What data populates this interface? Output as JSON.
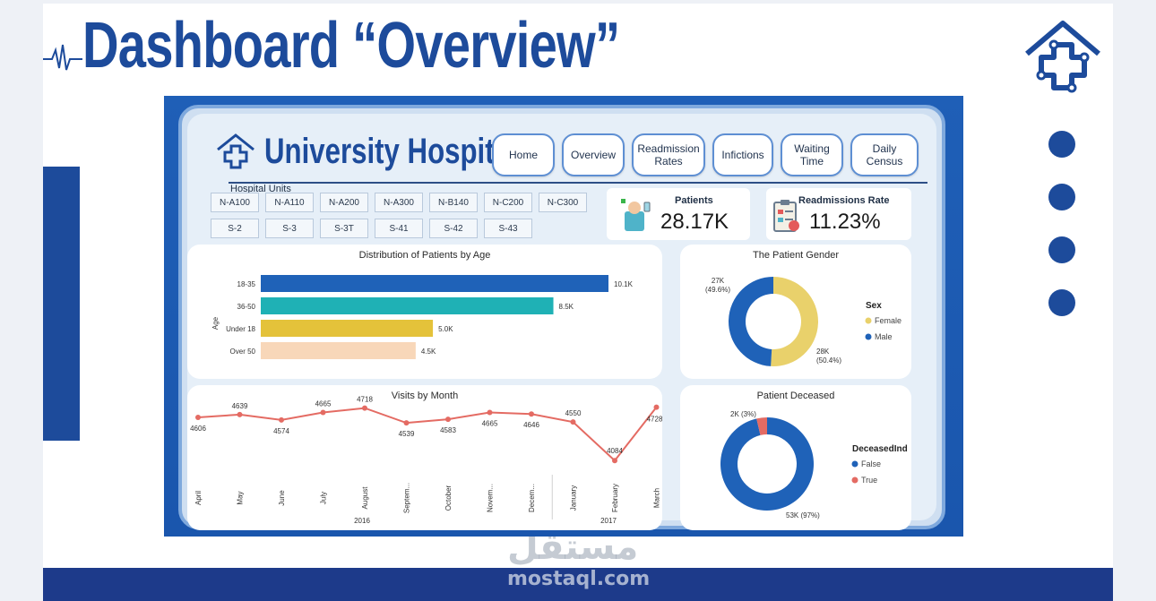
{
  "slide": {
    "title": "Dashboard “Overview”",
    "colors": {
      "primary": "#1d4b9b",
      "band": "#1d3a8a"
    },
    "watermark_ar": "مستقل",
    "watermark_en": "mostaql.com"
  },
  "dashboard": {
    "title": "University Hospital",
    "nav": [
      "Home",
      "Overview",
      "Readmission\nRates",
      "Infictions",
      "Waiting\nTime",
      "Daily\nCensus"
    ],
    "units_label": "Hospital Units",
    "units_row1": [
      "N-A100",
      "N-A110",
      "N-A200",
      "N-A300",
      "N-B140",
      "N-C200",
      "N-C300"
    ],
    "units_row2": [
      "S-2",
      "S-3",
      "S-3T",
      "S-41",
      "S-42",
      "S-43"
    ],
    "kpis": [
      {
        "label": "Patients",
        "value": "28.17K",
        "icon": "patient-icon"
      },
      {
        "label": "Readmissions Rate",
        "value": "11.23%",
        "icon": "clipboard-icon"
      }
    ]
  },
  "chart_data": [
    {
      "type": "bar",
      "title": "Distribution of Patients by Age",
      "ylabel": "Age",
      "categories": [
        "18-35",
        "36-50",
        "Under 18",
        "Over 50"
      ],
      "values": [
        10.1,
        8.5,
        5.0,
        4.5
      ],
      "value_labels": [
        "10.1K",
        "8.5K",
        "5.0K",
        "4.5K"
      ],
      "colors": [
        "#1f62b8",
        "#1fb1b5",
        "#e4c23a",
        "#f8d7b9"
      ],
      "xlim": [
        0,
        10.1
      ]
    },
    {
      "type": "pie",
      "title": "The Patient Gender",
      "legend_title": "Sex",
      "labels": [
        "Female",
        "Male"
      ],
      "values": [
        28,
        27
      ],
      "value_labels": [
        "28K\n(50.4%)",
        "27K\n(49.6%)"
      ],
      "colors": [
        "#e9d16b",
        "#1f62b8"
      ]
    },
    {
      "type": "line",
      "title": "Visits by Month",
      "categories": [
        "April",
        "May",
        "June",
        "July",
        "August",
        "Septem...",
        "October",
        "Novem...",
        "Decem...",
        "January",
        "February",
        "March"
      ],
      "values": [
        4606,
        4639,
        4574,
        4665,
        4718,
        4539,
        4583,
        4665,
        4646,
        4550,
        4084,
        4728
      ],
      "year_labels": [
        "2016",
        "2017"
      ],
      "color": "#e46b63",
      "ylim": [
        4000,
        4800
      ]
    },
    {
      "type": "pie",
      "title": "Patient Deceased",
      "legend_title": "DeceasedInd",
      "labels": [
        "False",
        "True"
      ],
      "values": [
        53,
        2
      ],
      "value_labels": [
        "53K (97%)",
        "2K (3%)"
      ],
      "colors": [
        "#1f62b8",
        "#e46b63"
      ]
    }
  ]
}
